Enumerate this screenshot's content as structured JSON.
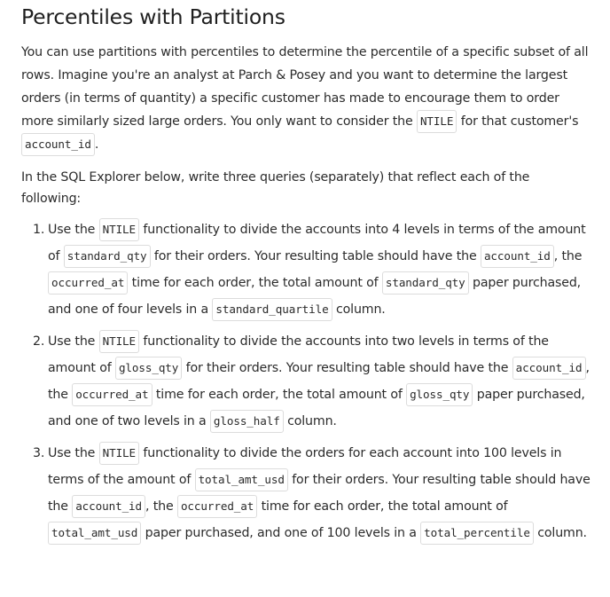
{
  "title": "Percentiles with Partitions",
  "intro": {
    "t1": "You can use partitions with percentiles to determine the percentile of a specific subset of all rows. Imagine you're an analyst at Parch & Posey and you want to determine the largest orders (in terms of quantity) a specific customer has made to encourage them to order more similarly sized large orders. You only want to consider the ",
    "c1": "NTILE",
    "t2": " for that customer's ",
    "c2": "account_id",
    "t3": "."
  },
  "instructions": "In the SQL Explorer below, write three queries (separately) that reflect each of the following:",
  "tasks": [
    {
      "num": "1.",
      "t1": "Use the ",
      "c1": "NTILE",
      "t2": " functionality to divide the accounts into 4 levels in terms of the amount of ",
      "c2": "standard_qty",
      "t3": " for their orders. Your resulting table should have the ",
      "c3": "account_id",
      "t4": ", the ",
      "c4": "occurred_at",
      "t5": " time for each order, the total amount of ",
      "c5": "standard_qty",
      "t6": " paper purchased, and one of four levels in a ",
      "c6": "standard_quartile",
      "t7": " column."
    },
    {
      "num": "2.",
      "t1": "Use the ",
      "c1": "NTILE",
      "t2": " functionality to divide the accounts into two levels in terms of the amount of ",
      "c2": "gloss_qty",
      "t3": " for their orders. Your resulting table should have the ",
      "c3": "account_id",
      "t4": ", the ",
      "c4": "occurred_at",
      "t5": " time for each order, the total amount of ",
      "c5": "gloss_qty",
      "t6": " paper purchased, and one of two levels in a ",
      "c6": "gloss_half",
      "t7": " column."
    },
    {
      "num": "3.",
      "t1": "Use the ",
      "c1": "NTILE",
      "t2": " functionality to divide the orders for each account into 100 levels in terms of the amount of ",
      "c2": "total_amt_usd",
      "t3": " for their orders. Your resulting table should have the ",
      "c3": "account_id",
      "t4": ", the ",
      "c4": "occurred_at",
      "t5": " time for each order, the total amount of ",
      "c5": "total_amt_usd",
      "t6": " paper purchased, and one of 100 levels in a ",
      "c6": "total_percentile",
      "t7": " column."
    }
  ]
}
